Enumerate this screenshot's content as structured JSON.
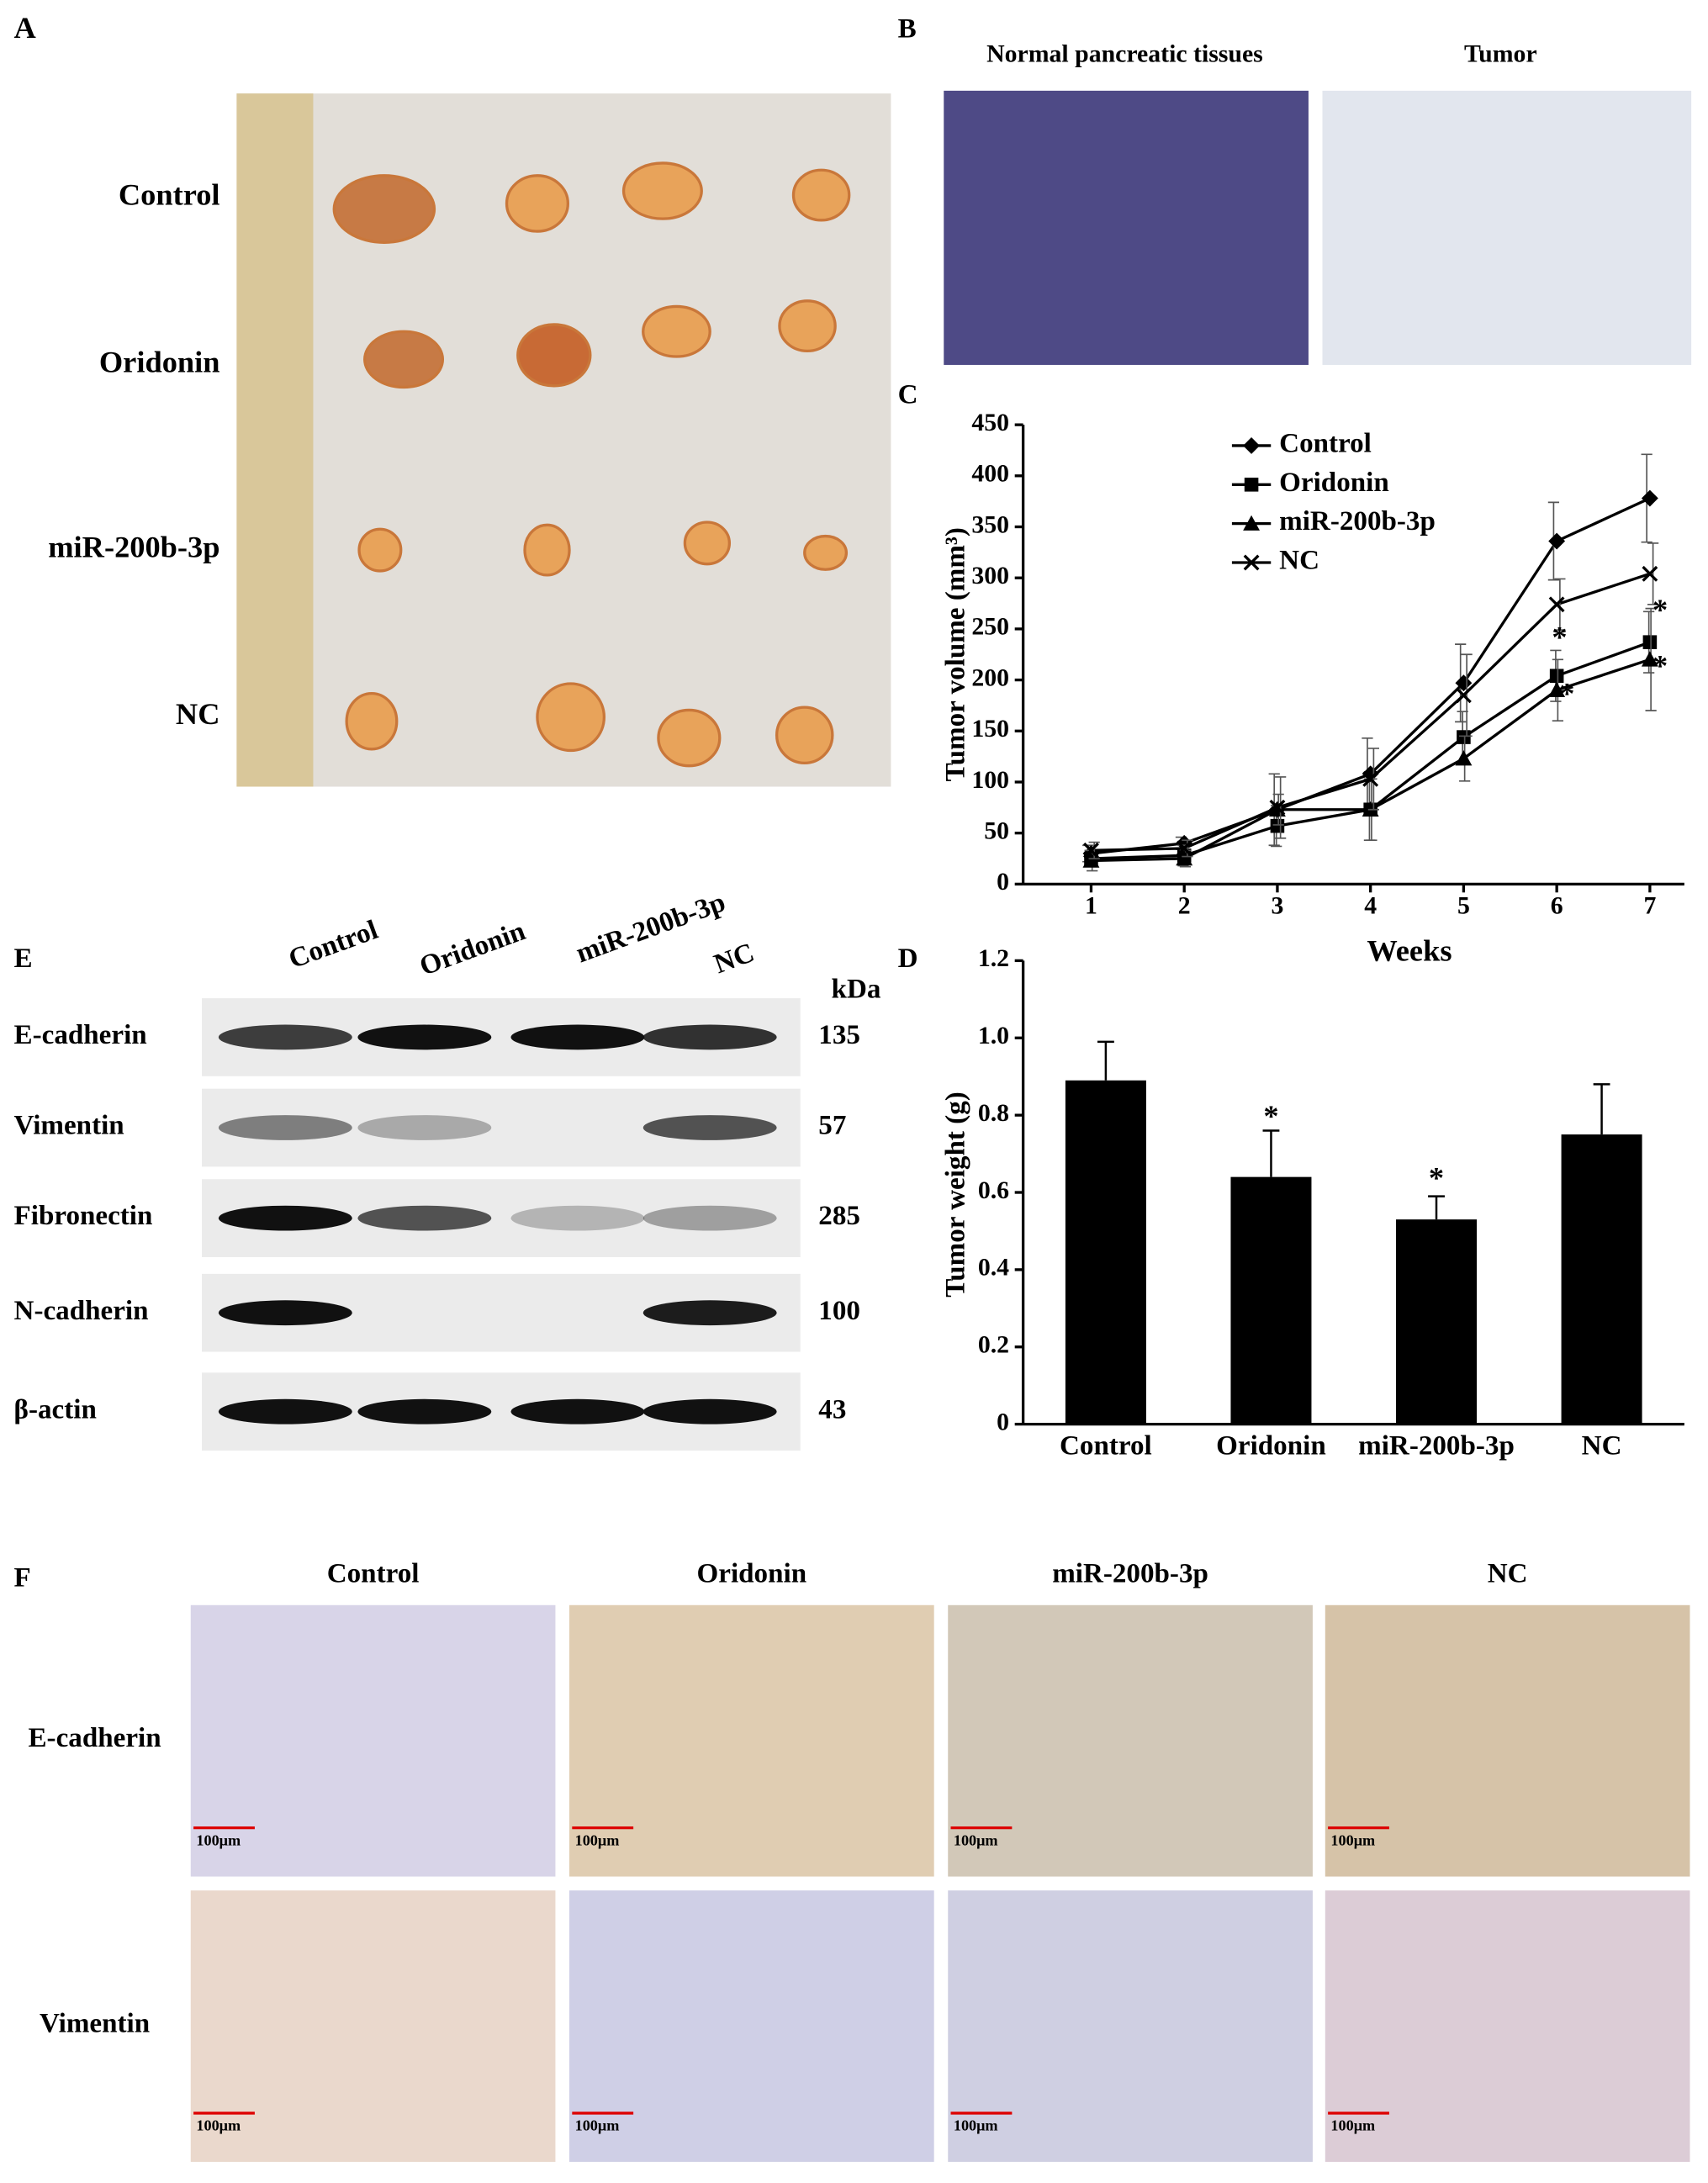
{
  "panels": {
    "A": {
      "label": "A",
      "rows": [
        "Control",
        "Oridonin",
        "miR-200b-3p",
        "NC"
      ]
    },
    "B": {
      "label": "B",
      "images": [
        "Normal pancreatic tissues",
        "Tumor"
      ]
    },
    "E": {
      "label": "E",
      "lanes": [
        "Control",
        "Oridonin",
        "miR-200b-3p",
        "NC"
      ],
      "unit": "kDa",
      "proteins": [
        {
          "name": "E-cadherin",
          "kda": "135"
        },
        {
          "name": "Vimentin",
          "kda": "57"
        },
        {
          "name": "Fibronectin",
          "kda": "285"
        },
        {
          "name": "N-cadherin",
          "kda": "100"
        },
        {
          "name": "β-actin",
          "kda": "43"
        }
      ]
    },
    "F": {
      "label": "F",
      "columns": [
        "Control",
        "Oridonin",
        "miR-200b-3p",
        "NC"
      ],
      "rows": [
        "E-cadherin",
        "Vimentin"
      ],
      "scale_bar": "100μm"
    }
  },
  "chart_data": [
    {
      "label": "C",
      "type": "line",
      "x_label": "Weeks",
      "y_label": "Tumor volume (mm³)",
      "x": [
        1,
        2,
        3,
        4,
        5,
        6,
        7
      ],
      "xlim": [
        0.27,
        7.37
      ],
      "xticks": [
        1,
        2,
        3,
        4,
        5,
        6,
        7
      ],
      "ylim": [
        0,
        450
      ],
      "yticks": [
        0,
        50,
        100,
        150,
        200,
        250,
        300,
        350,
        400,
        450
      ],
      "legend": "upper center",
      "series": [
        {
          "name": "Control",
          "color": "#000000",
          "marker": "diamond",
          "values": [
            30,
            40,
            73,
            108,
            197,
            336,
            378
          ],
          "errors": [
            8,
            6,
            35,
            35,
            38,
            38,
            43
          ]
        },
        {
          "name": "Oridonin",
          "color": "#000000",
          "marker": "square",
          "values": [
            25,
            28,
            57,
            73,
            144,
            204,
            237
          ],
          "errors": [
            8,
            10,
            20,
            30,
            25,
            25,
            30
          ]
        },
        {
          "name": "miR-200b-3p",
          "color": "#000000",
          "marker": "triangle",
          "values": [
            23,
            25,
            73,
            73,
            123,
            190,
            220
          ],
          "errors": [
            10,
            8,
            15,
            30,
            22,
            30,
            50
          ]
        },
        {
          "name": "NC",
          "color": "#000000",
          "marker": "x",
          "values": [
            33,
            35,
            75,
            103,
            185,
            274,
            304
          ],
          "errors": [
            8,
            8,
            30,
            30,
            40,
            25,
            30
          ]
        }
      ],
      "annotations": [
        {
          "text": "*",
          "x": 6,
          "y": 239
        },
        {
          "text": "*",
          "x": 6.08,
          "y": 184
        },
        {
          "text": "*",
          "x": 7.08,
          "y": 266
        },
        {
          "text": "*",
          "x": 7.08,
          "y": 211
        }
      ]
    },
    {
      "label": "D",
      "type": "bar",
      "y_label": "Tumor weight (g)",
      "categories": [
        "Control",
        "Oridonin",
        "miR-200b-3p",
        "NC"
      ],
      "values": [
        0.89,
        0.64,
        0.53,
        0.75
      ],
      "errors": [
        0.1,
        0.12,
        0.06,
        0.13
      ],
      "color": "#000000",
      "ylim": [
        0,
        1.2
      ],
      "yticks": [
        0,
        0.2,
        0.4,
        0.6,
        0.8,
        {
          "value": 1,
          "label": "1.0"
        },
        1.2
      ],
      "annotations": [
        {
          "text": "*",
          "x": 1,
          "y": 0.79
        },
        {
          "text": "*",
          "x": 2,
          "y": 0.63
        }
      ]
    }
  ]
}
